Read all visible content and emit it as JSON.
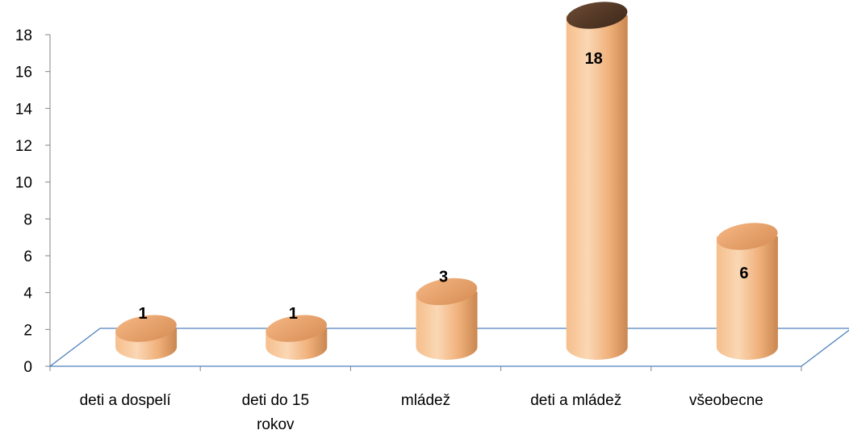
{
  "chart_data": {
    "type": "bar",
    "style": "3d-cylinder",
    "categories": [
      [
        "deti a dospelí"
      ],
      [
        "deti do 15",
        "rokov"
      ],
      [
        "mládež"
      ],
      [
        "deti a mládež"
      ],
      [
        "všeobecne"
      ]
    ],
    "values": [
      1,
      1,
      3,
      18,
      6
    ],
    "data_labels": [
      "1",
      "1",
      "3",
      "18",
      "6"
    ],
    "ylim": [
      0,
      18
    ],
    "yticks": [
      "0",
      "2",
      "4",
      "6",
      "8",
      "10",
      "12",
      "14",
      "16",
      "18"
    ],
    "grid": false,
    "legend": "none",
    "colors": {
      "bar_light": "#F9D3AE",
      "bar_mid": "#F3B47E",
      "bar_dark": "#B9703F",
      "top_fill": "#E39A60",
      "top_dark": "#4A3020",
      "floor_line": "#4F81BD",
      "axis": "#868686"
    }
  }
}
